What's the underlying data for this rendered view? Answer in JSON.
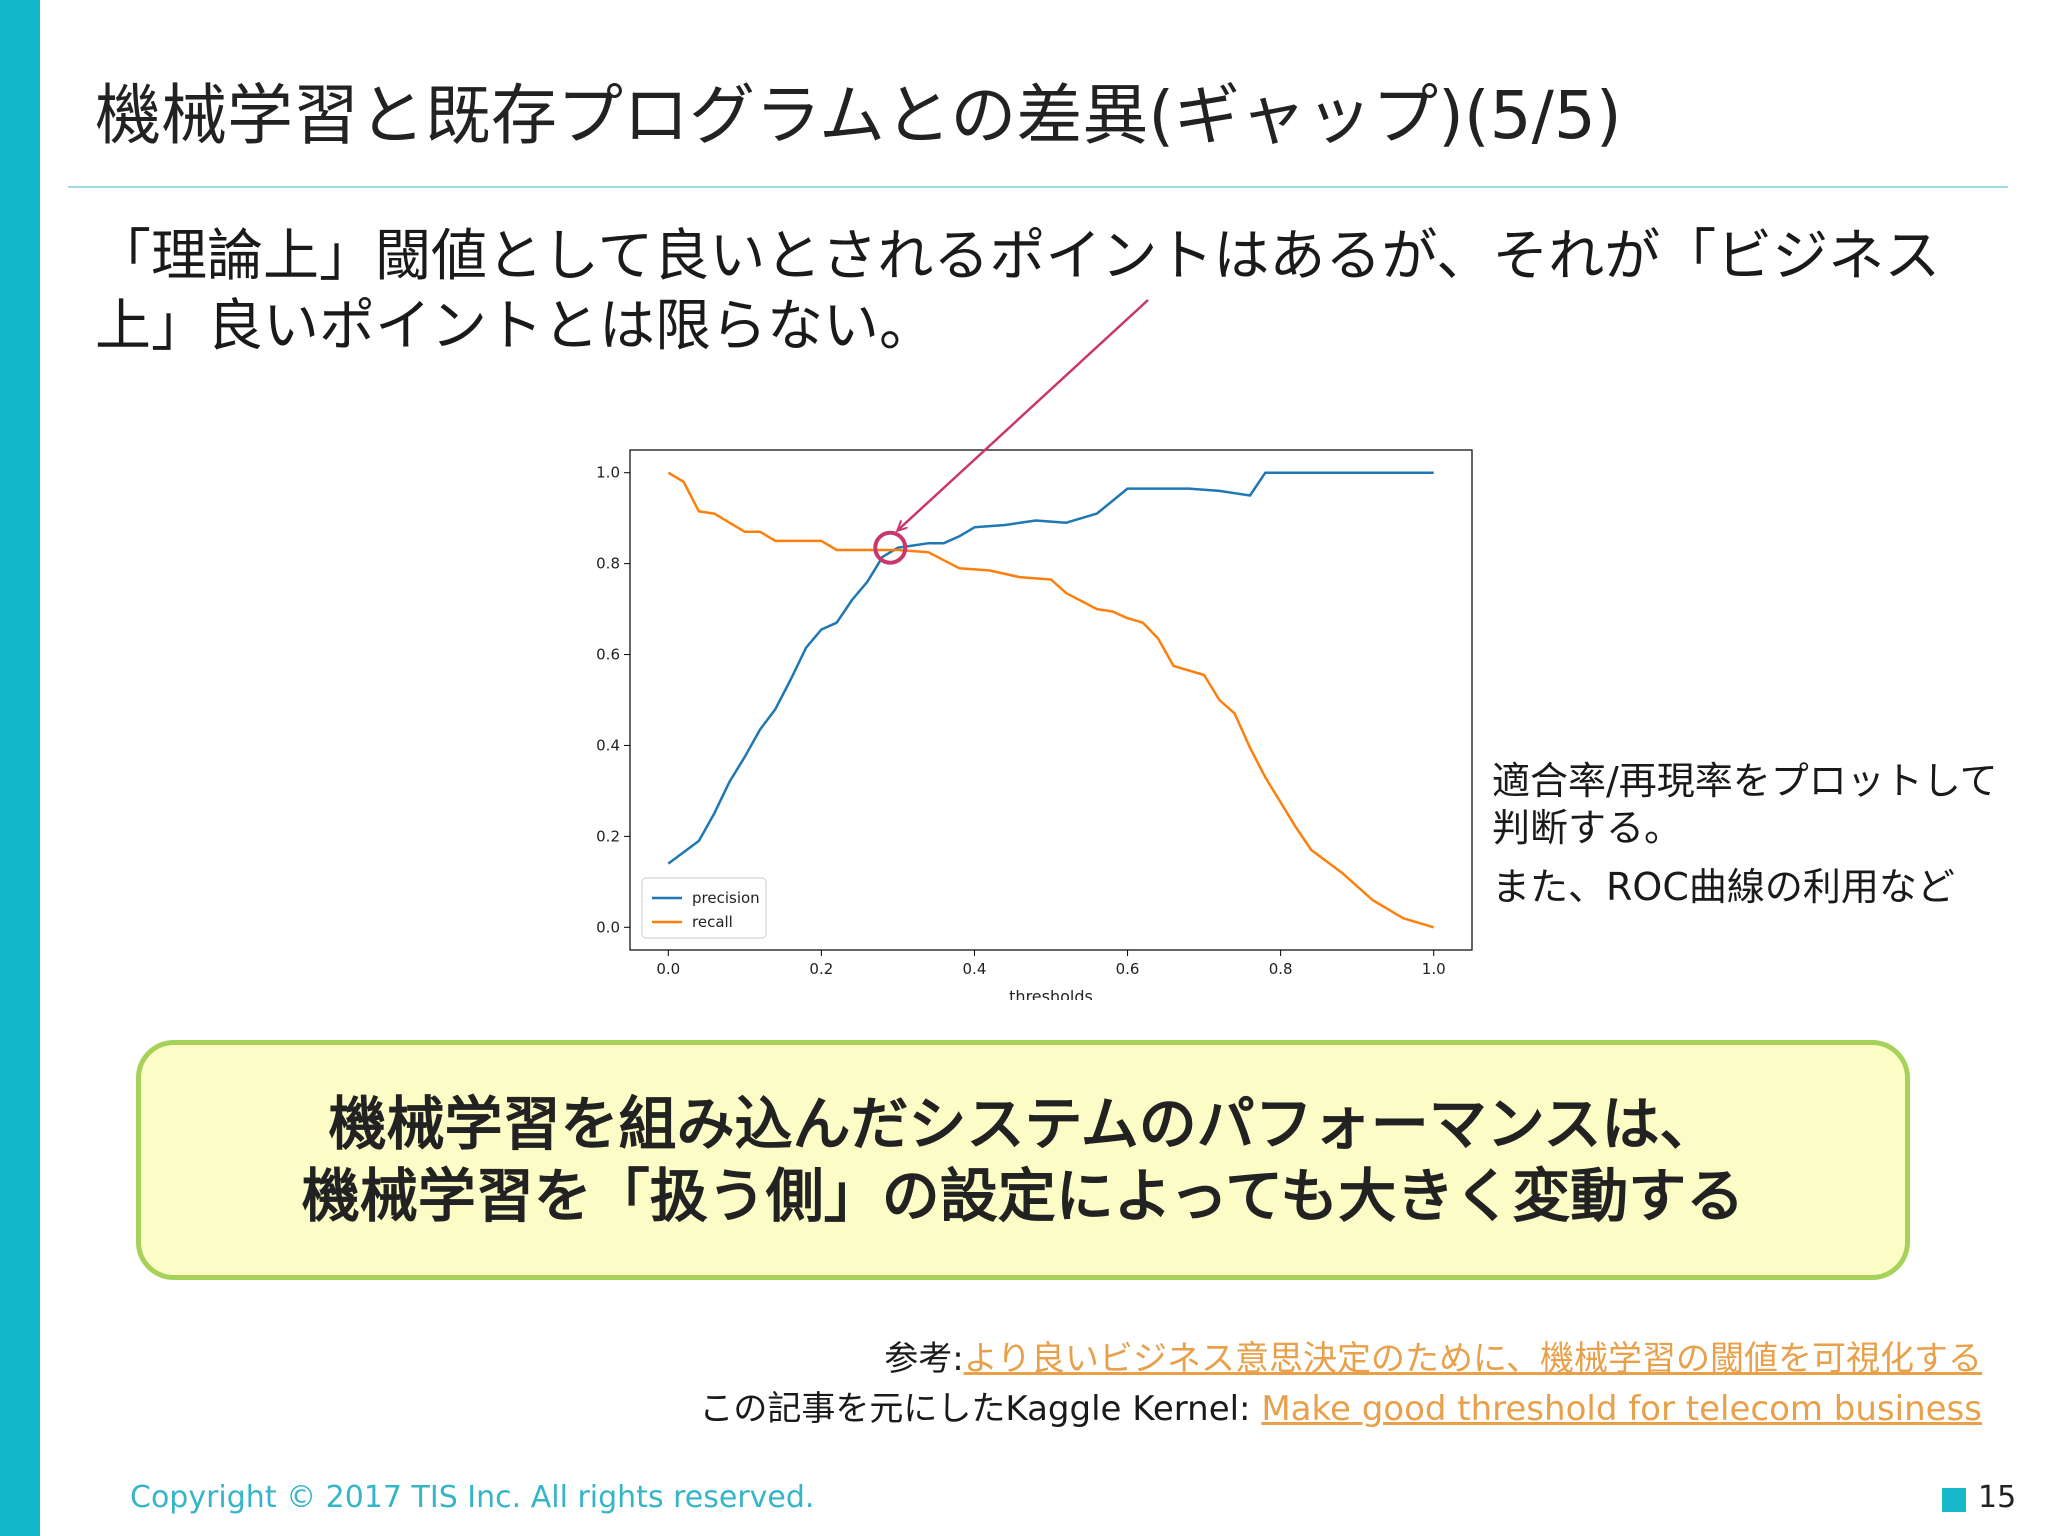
{
  "slide": {
    "title": "機械学習と既存プログラムとの差異(ギャップ)(5/5)",
    "lead_text": "「理論上」閾値として良いとされるポイントはあるが、それが「ビジネス上」良いポイントとは限らない。",
    "side_note": {
      "line1": "適合率/再現率をプロットして判断する。",
      "line2": "また、ROC曲線の利用など"
    },
    "callout": {
      "line1": "機械学習を組み込んだシステムのパフォーマンスは、",
      "line2": "機械学習を「扱う側」の設定によっても大きく変動する"
    },
    "reference": {
      "label1": "参考:",
      "link1": "より良いビジネス意思決定のために、機械学習の閾値を可視化する",
      "label2": "この記事を元にしたKaggle Kernel: ",
      "link2": "Make good threshold for telecom business"
    },
    "copyright": "Copyright © 2017 TIS Inc. All rights reserved.",
    "page_number": "15"
  },
  "colors": {
    "accent_bar": "#12b7c9",
    "precision": "#1f77b4",
    "recall": "#ff7f0e",
    "arrow": "#c8386e",
    "callout_border": "#a6d25a",
    "callout_bg": "#fcfcc6",
    "link": "#e8a04a"
  },
  "chart_data": {
    "type": "line",
    "xlabel": "thresholds",
    "ylabel": "",
    "xlim": [
      -0.05,
      1.05
    ],
    "ylim": [
      -0.05,
      1.05
    ],
    "xticks": [
      "0.0",
      "0.2",
      "0.4",
      "0.6",
      "0.8",
      "1.0"
    ],
    "yticks": [
      "0.0",
      "0.2",
      "0.4",
      "0.6",
      "0.8",
      "1.0"
    ],
    "legend_position": "bottom-left",
    "highlight_point": {
      "x": 0.29,
      "y": 0.835
    },
    "series": [
      {
        "name": "precision",
        "x": [
          0.0,
          0.02,
          0.04,
          0.06,
          0.08,
          0.1,
          0.12,
          0.14,
          0.16,
          0.18,
          0.2,
          0.22,
          0.24,
          0.26,
          0.28,
          0.3,
          0.32,
          0.34,
          0.36,
          0.38,
          0.4,
          0.44,
          0.48,
          0.52,
          0.56,
          0.6,
          0.64,
          0.68,
          0.72,
          0.74,
          0.76,
          0.78,
          0.8,
          0.85,
          0.9,
          1.0
        ],
        "values": [
          0.14,
          0.165,
          0.19,
          0.25,
          0.32,
          0.375,
          0.435,
          0.48,
          0.545,
          0.615,
          0.655,
          0.67,
          0.72,
          0.76,
          0.815,
          0.835,
          0.84,
          0.845,
          0.845,
          0.86,
          0.88,
          0.885,
          0.895,
          0.89,
          0.91,
          0.965,
          0.965,
          0.965,
          0.96,
          0.955,
          0.95,
          1.0,
          1.0,
          1.0,
          1.0,
          1.0
        ]
      },
      {
        "name": "recall",
        "x": [
          0.0,
          0.02,
          0.04,
          0.06,
          0.08,
          0.1,
          0.12,
          0.14,
          0.16,
          0.18,
          0.2,
          0.22,
          0.24,
          0.26,
          0.28,
          0.3,
          0.34,
          0.38,
          0.42,
          0.46,
          0.5,
          0.52,
          0.56,
          0.58,
          0.6,
          0.62,
          0.64,
          0.66,
          0.7,
          0.72,
          0.74,
          0.76,
          0.78,
          0.8,
          0.82,
          0.84,
          0.88,
          0.92,
          0.96,
          1.0
        ],
        "values": [
          1.0,
          0.98,
          0.915,
          0.91,
          0.89,
          0.87,
          0.87,
          0.85,
          0.85,
          0.85,
          0.85,
          0.83,
          0.83,
          0.83,
          0.83,
          0.83,
          0.825,
          0.79,
          0.785,
          0.77,
          0.765,
          0.735,
          0.7,
          0.695,
          0.68,
          0.67,
          0.635,
          0.575,
          0.555,
          0.5,
          0.47,
          0.395,
          0.33,
          0.275,
          0.22,
          0.17,
          0.12,
          0.06,
          0.02,
          0.0
        ]
      }
    ]
  }
}
